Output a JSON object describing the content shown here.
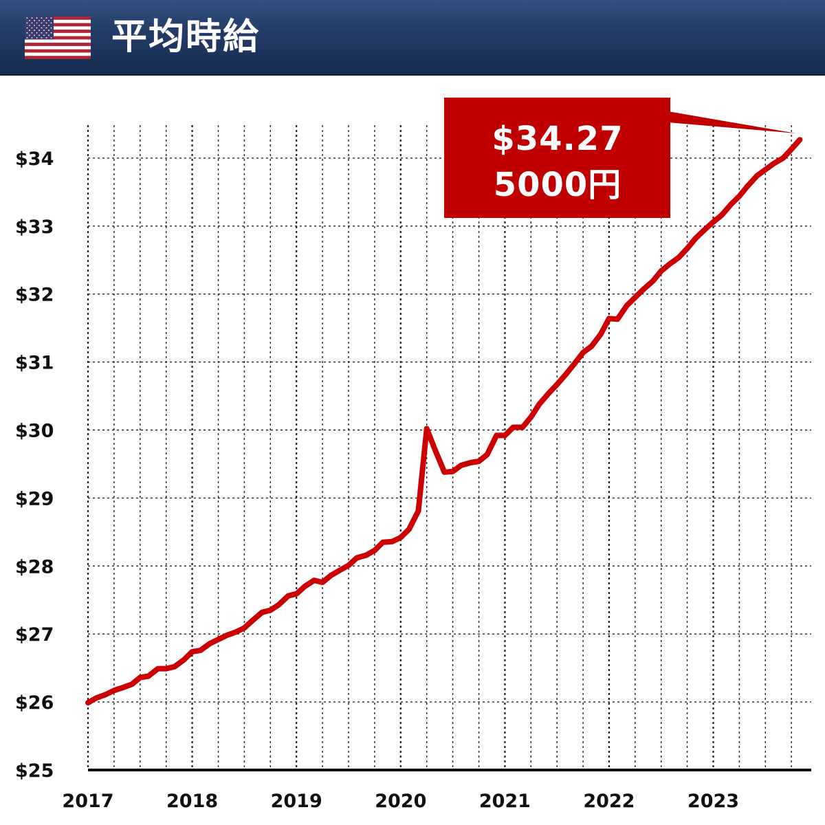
{
  "header": {
    "title": "平均時給",
    "flag_icon": "us-flag-icon"
  },
  "colors": {
    "header_top": "#34507f",
    "header_bottom": "#172c50",
    "line": "#cc0000",
    "callout": "#c00000"
  },
  "callout": {
    "line1": "$34.27",
    "line2": "5000円"
  },
  "chart_data": {
    "type": "line",
    "title": "平均時給",
    "xlabel": "",
    "ylabel": "",
    "ylim": [
      25,
      34.3
    ],
    "xlim": [
      2017.0,
      2023.92
    ],
    "yticks": [
      25,
      26,
      27,
      28,
      29,
      30,
      31,
      32,
      33,
      34
    ],
    "ytick_labels": [
      "$25",
      "$26",
      "$27",
      "$28",
      "$29",
      "$30",
      "$31",
      "$32",
      "$33",
      "$34"
    ],
    "xtick_labels": [
      "2017",
      "2018",
      "2019",
      "2020",
      "2021",
      "2022",
      "2023"
    ],
    "grid": true,
    "legend": "none",
    "series": [
      {
        "color": "#cc0000",
        "points": [
          [
            2017.0,
            25.99
          ],
          [
            2017.08,
            26.06
          ],
          [
            2017.17,
            26.11
          ],
          [
            2017.25,
            26.17
          ],
          [
            2017.33,
            26.21
          ],
          [
            2017.42,
            26.26
          ],
          [
            2017.5,
            26.36
          ],
          [
            2017.58,
            26.38
          ],
          [
            2017.67,
            26.49
          ],
          [
            2017.75,
            26.49
          ],
          [
            2017.83,
            26.52
          ],
          [
            2017.92,
            26.62
          ],
          [
            2018.0,
            26.74
          ],
          [
            2018.08,
            26.76
          ],
          [
            2018.17,
            26.86
          ],
          [
            2018.25,
            26.92
          ],
          [
            2018.33,
            26.98
          ],
          [
            2018.42,
            27.03
          ],
          [
            2018.5,
            27.09
          ],
          [
            2018.58,
            27.2
          ],
          [
            2018.67,
            27.32
          ],
          [
            2018.75,
            27.35
          ],
          [
            2018.83,
            27.43
          ],
          [
            2018.92,
            27.56
          ],
          [
            2019.0,
            27.59
          ],
          [
            2019.08,
            27.7
          ],
          [
            2019.17,
            27.79
          ],
          [
            2019.25,
            27.76
          ],
          [
            2019.33,
            27.86
          ],
          [
            2019.42,
            27.94
          ],
          [
            2019.5,
            28.01
          ],
          [
            2019.58,
            28.12
          ],
          [
            2019.67,
            28.16
          ],
          [
            2019.75,
            28.23
          ],
          [
            2019.83,
            28.35
          ],
          [
            2019.92,
            28.36
          ],
          [
            2020.0,
            28.42
          ],
          [
            2020.08,
            28.54
          ],
          [
            2020.17,
            28.81
          ],
          [
            2020.25,
            30.02
          ],
          [
            2020.33,
            29.71
          ],
          [
            2020.42,
            29.38
          ],
          [
            2020.5,
            29.39
          ],
          [
            2020.58,
            29.48
          ],
          [
            2020.67,
            29.52
          ],
          [
            2020.75,
            29.54
          ],
          [
            2020.83,
            29.64
          ],
          [
            2020.92,
            29.92
          ],
          [
            2021.0,
            29.92
          ],
          [
            2021.08,
            30.04
          ],
          [
            2021.17,
            30.04
          ],
          [
            2021.25,
            30.19
          ],
          [
            2021.33,
            30.38
          ],
          [
            2021.42,
            30.54
          ],
          [
            2021.5,
            30.67
          ],
          [
            2021.58,
            30.81
          ],
          [
            2021.67,
            30.98
          ],
          [
            2021.75,
            31.14
          ],
          [
            2021.83,
            31.23
          ],
          [
            2021.92,
            31.41
          ],
          [
            2022.0,
            31.64
          ],
          [
            2022.08,
            31.63
          ],
          [
            2022.17,
            31.83
          ],
          [
            2022.25,
            31.95
          ],
          [
            2022.33,
            32.07
          ],
          [
            2022.42,
            32.19
          ],
          [
            2022.5,
            32.34
          ],
          [
            2022.58,
            32.44
          ],
          [
            2022.67,
            32.54
          ],
          [
            2022.75,
            32.67
          ],
          [
            2022.83,
            32.82
          ],
          [
            2022.92,
            32.95
          ],
          [
            2023.0,
            33.06
          ],
          [
            2023.08,
            33.16
          ],
          [
            2023.17,
            33.32
          ],
          [
            2023.25,
            33.44
          ],
          [
            2023.33,
            33.59
          ],
          [
            2023.42,
            33.74
          ],
          [
            2023.5,
            33.83
          ],
          [
            2023.58,
            33.92
          ],
          [
            2023.67,
            34.0
          ],
          [
            2023.75,
            34.13
          ],
          [
            2023.83,
            34.27
          ]
        ]
      }
    ]
  }
}
